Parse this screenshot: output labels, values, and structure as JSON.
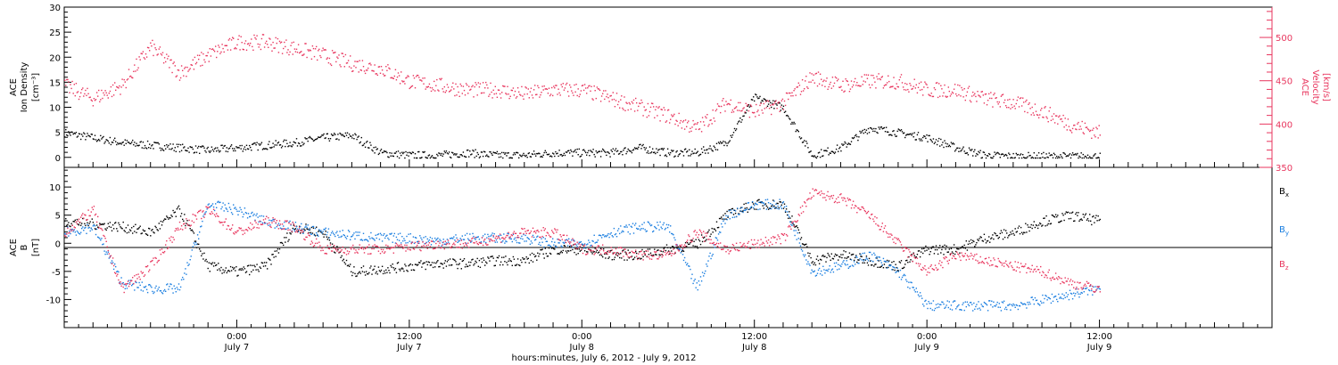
{
  "colors": {
    "black": "#000000",
    "pink": "#e8365e",
    "blue": "#1a7ee0"
  },
  "xaxis": {
    "title": "hours:minutes, July  6, 2012 - July  9, 2012",
    "ticks": [
      {
        "t": 24,
        "hm": "0:00",
        "day": "July 7"
      },
      {
        "t": 36,
        "hm": "12:00",
        "day": "July 7"
      },
      {
        "t": 48,
        "hm": "0:00",
        "day": "July 8"
      },
      {
        "t": 60,
        "hm": "12:00",
        "day": "July 8"
      },
      {
        "t": 72,
        "hm": "0:00",
        "day": "July 9"
      },
      {
        "t": 84,
        "hm": "12:00",
        "day": "July 9"
      }
    ],
    "range_hours": [
      12,
      96
    ]
  },
  "panel1": {
    "ylabel_lines": [
      "ACE",
      "Ion Density",
      "[cm⁻³]"
    ],
    "y2label_lines": [
      "ACE",
      "Velocity",
      "[km/s]"
    ],
    "y_ticks": [
      "0",
      "5",
      "10",
      "15",
      "20",
      "25",
      "30"
    ],
    "y2_ticks": [
      "350",
      "400",
      "450",
      "500"
    ]
  },
  "panel2": {
    "ylabel_lines": [
      "ACE",
      "B",
      "[nT]"
    ],
    "y_ticks": [
      "-10",
      "-5",
      "0",
      "5",
      "10"
    ],
    "legend": [
      {
        "label": "B",
        "sub": "x",
        "color": "#000000"
      },
      {
        "label": "B",
        "sub": "y",
        "color": "#1a7ee0"
      },
      {
        "label": "B",
        "sub": "z",
        "color": "#e8365e"
      }
    ]
  },
  "chart_data": [
    {
      "type": "scatter",
      "title": "",
      "xlabel": "hours:minutes, July  6, 2012 - July  9, 2012",
      "ylabel": "ACE Ion Density [cm⁻³]",
      "y2label": "ACE Velocity [km/s]",
      "xlim": [
        12,
        96
      ],
      "ylim": [
        -2,
        30
      ],
      "y2lim": [
        350,
        535
      ],
      "x_unit": "hours since July 6 00:00",
      "series": [
        {
          "name": "Ion Density",
          "axis": "left",
          "color": "#000000",
          "x": [
            12,
            14,
            16,
            18,
            20,
            22,
            24,
            26,
            28,
            30,
            32,
            34,
            36,
            38,
            40,
            42,
            44,
            46,
            48,
            50,
            52,
            54,
            56,
            58,
            60,
            62,
            64,
            66,
            68,
            70,
            72,
            74,
            76,
            78,
            80,
            82,
            84
          ],
          "y": [
            5,
            4,
            3,
            2.5,
            2,
            1.5,
            2,
            2.5,
            3,
            4,
            4.5,
            1,
            0.5,
            0.5,
            1,
            0.5,
            0.5,
            1,
            1,
            1,
            2,
            1,
            1,
            3,
            12,
            10,
            0.5,
            2,
            6,
            5,
            4,
            2,
            0.5,
            0.3,
            0.3,
            0.3,
            0.3
          ]
        },
        {
          "name": "Velocity",
          "axis": "right",
          "color": "#e8365e",
          "x": [
            12,
            14,
            16,
            18,
            20,
            22,
            24,
            26,
            28,
            30,
            32,
            34,
            36,
            38,
            40,
            42,
            44,
            46,
            48,
            50,
            52,
            54,
            56,
            58,
            60,
            62,
            64,
            66,
            68,
            70,
            72,
            74,
            76,
            78,
            80,
            82,
            84
          ],
          "y": [
            445,
            430,
            445,
            490,
            460,
            480,
            495,
            495,
            488,
            480,
            470,
            465,
            450,
            445,
            440,
            440,
            435,
            440,
            440,
            430,
            420,
            410,
            395,
            425,
            415,
            425,
            455,
            445,
            450,
            450,
            440,
            440,
            430,
            425,
            415,
            400,
            390
          ]
        }
      ]
    },
    {
      "type": "scatter",
      "title": "",
      "xlabel": "hours:minutes, July  6, 2012 - July  9, 2012",
      "ylabel": "ACE B [nT]",
      "xlim": [
        12,
        96
      ],
      "ylim": [
        -15,
        13.5
      ],
      "x_unit": "hours since July 6 00:00",
      "series": [
        {
          "name": "Bx",
          "color": "#000000",
          "x": [
            12,
            14,
            16,
            18,
            20,
            22,
            24,
            26,
            28,
            30,
            32,
            34,
            36,
            38,
            40,
            42,
            44,
            46,
            48,
            50,
            52,
            54,
            56,
            58,
            60,
            62,
            64,
            66,
            68,
            70,
            72,
            74,
            76,
            78,
            80,
            82,
            84
          ],
          "y": [
            4,
            3.5,
            3,
            2,
            6,
            -4,
            -5,
            -4,
            3,
            2,
            -5,
            -4.5,
            -4,
            -3.5,
            -3.5,
            -3,
            -3,
            -1,
            -1,
            -2,
            -2,
            -1,
            0,
            5,
            7,
            7,
            -3,
            -2,
            -3,
            -4,
            -1,
            -1,
            1,
            2,
            4,
            5,
            4
          ]
        },
        {
          "name": "By",
          "color": "#1a7ee0",
          "x": [
            12,
            14,
            16,
            18,
            20,
            22,
            24,
            26,
            28,
            30,
            32,
            34,
            36,
            38,
            40,
            42,
            44,
            46,
            48,
            50,
            52,
            54,
            56,
            58,
            60,
            62,
            64,
            66,
            68,
            70,
            72,
            74,
            76,
            78,
            80,
            82,
            84
          ],
          "y": [
            2,
            3,
            -7,
            -8,
            -8,
            7,
            6,
            4,
            3,
            2,
            1.5,
            1,
            1,
            0.5,
            1,
            1,
            1,
            0,
            0,
            2,
            3,
            3,
            -8,
            5,
            7,
            7,
            -5,
            -4,
            -2,
            -5,
            -11,
            -11,
            -11,
            -11,
            -10,
            -9,
            -8
          ]
        },
        {
          "name": "Bz",
          "color": "#e8365e",
          "x": [
            12,
            14,
            16,
            18,
            20,
            22,
            24,
            26,
            28,
            30,
            32,
            34,
            36,
            38,
            40,
            42,
            44,
            46,
            48,
            50,
            52,
            54,
            56,
            58,
            60,
            62,
            64,
            66,
            68,
            70,
            72,
            74,
            76,
            78,
            80,
            82,
            84
          ],
          "y": [
            2,
            6,
            -8,
            -4,
            3,
            6,
            2,
            4,
            3,
            -1,
            -1,
            -1,
            -0.5,
            0,
            0,
            1,
            2,
            2,
            -1,
            -1,
            -2,
            -2,
            2,
            -1,
            0,
            1,
            9,
            8,
            5,
            0,
            -5,
            -2,
            -3,
            -4,
            -5,
            -7,
            -8
          ]
        }
      ]
    }
  ]
}
